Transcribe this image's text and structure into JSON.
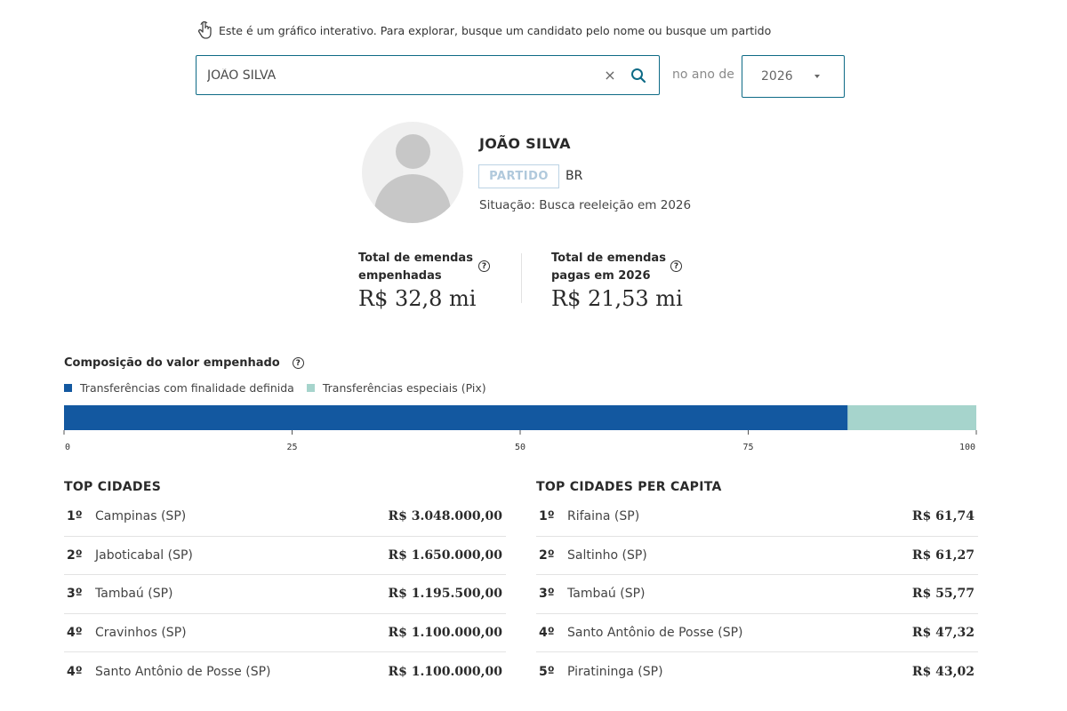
{
  "hint": {
    "text": "Este é um gráfico interativo. Para explorar, busque um candidato pelo nome ou busque um partido",
    "icon": "pointer-hand-icon"
  },
  "search": {
    "value": "JOÃO SILVA",
    "placeholder": "",
    "clear_label": "×",
    "icon": "search-icon"
  },
  "year": {
    "label": "no ano de",
    "selected": "2026"
  },
  "candidate": {
    "name": "JOÃO SILVA",
    "party": "PARTIDO",
    "uf": "BR",
    "status": "Situação: Busca reeleição em 2026"
  },
  "stats": [
    {
      "label_line1": "Total de emendas",
      "label_line2": "empenhadas",
      "value": "R$ 32,8 mi",
      "info": "?"
    },
    {
      "label_line1": "Total de emendas",
      "label_line2": "pagas em 2026",
      "value": "R$ 21,53 mi",
      "info": "?"
    }
  ],
  "composition": {
    "title": "Composição do valor empenhado",
    "info": "?",
    "legend": [
      {
        "label": "Transferências com finalidade definida",
        "color": "#1358a0"
      },
      {
        "label": "Transferências especiais (Pix)",
        "color": "#a6d4cc"
      }
    ]
  },
  "chart_data": {
    "type": "bar",
    "orientation": "horizontal-stacked",
    "series": [
      {
        "name": "Transferências com finalidade definida",
        "value": 85.9,
        "color": "#1358a0"
      },
      {
        "name": "Transferências especiais (Pix)",
        "value": 14.1,
        "color": "#a6d4cc"
      }
    ],
    "xlim": [
      0,
      100
    ],
    "ticks": [
      "0",
      "25",
      "50",
      "75",
      "100"
    ]
  },
  "top_cities": {
    "title": "TOP CIDADES",
    "rows": [
      {
        "pos": "1º",
        "city": "Campinas (SP)",
        "amount": "R$ 3.048.000,00"
      },
      {
        "pos": "2º",
        "city": "Jaboticabal (SP)",
        "amount": "R$ 1.650.000,00"
      },
      {
        "pos": "3º",
        "city": "Tambaú (SP)",
        "amount": "R$ 1.195.500,00"
      },
      {
        "pos": "4º",
        "city": "Cravinhos (SP)",
        "amount": "R$ 1.100.000,00"
      },
      {
        "pos": "4º",
        "city": "Santo Antônio de Posse (SP)",
        "amount": "R$ 1.100.000,00"
      }
    ]
  },
  "top_per_capita": {
    "title": "TOP CIDADES PER CAPITA",
    "rows": [
      {
        "pos": "1º",
        "city": "Rifaina (SP)",
        "amount": "R$ 61,74"
      },
      {
        "pos": "2º",
        "city": "Saltinho (SP)",
        "amount": "R$ 61,27"
      },
      {
        "pos": "3º",
        "city": "Tambaú (SP)",
        "amount": "R$ 55,77"
      },
      {
        "pos": "4º",
        "city": "Santo Antônio de Posse (SP)",
        "amount": "R$ 47,32"
      },
      {
        "pos": "5º",
        "city": "Piratininga (SP)",
        "amount": "R$ 43,02"
      }
    ]
  }
}
